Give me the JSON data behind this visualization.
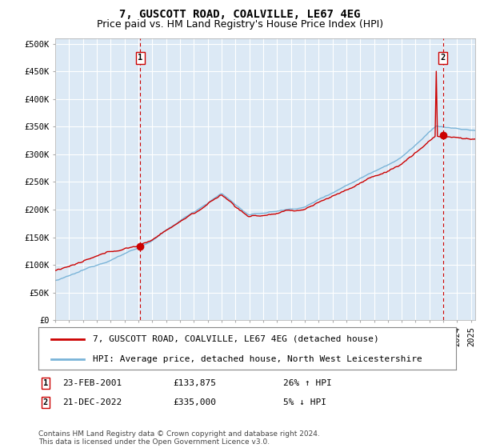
{
  "title": "7, GUSCOTT ROAD, COALVILLE, LE67 4EG",
  "subtitle": "Price paid vs. HM Land Registry's House Price Index (HPI)",
  "ylabel_ticks": [
    "£0",
    "£50K",
    "£100K",
    "£150K",
    "£200K",
    "£250K",
    "£300K",
    "£350K",
    "£400K",
    "£450K",
    "£500K"
  ],
  "ytick_values": [
    0,
    50000,
    100000,
    150000,
    200000,
    250000,
    300000,
    350000,
    400000,
    450000,
    500000
  ],
  "ylim": [
    0,
    510000
  ],
  "xlim_start": 1995.0,
  "xlim_end": 2025.3,
  "sale1_date": 2001.14,
  "sale1_price": 133875,
  "sale1_label": "1",
  "sale2_date": 2022.97,
  "sale2_price": 335000,
  "sale2_label": "2",
  "hpi_color": "#7ab4d8",
  "price_color": "#cc0000",
  "vline_color": "#cc0000",
  "vline_style": "--",
  "background_color": "#ffffff",
  "plot_bg_color": "#dce9f5",
  "grid_color": "#ffffff",
  "legend_label_price": "7, GUSCOTT ROAD, COALVILLE, LE67 4EG (detached house)",
  "legend_label_hpi": "HPI: Average price, detached house, North West Leicestershire",
  "annotation1_date": "23-FEB-2001",
  "annotation1_price": "£133,875",
  "annotation1_hpi": "26% ↑ HPI",
  "annotation2_date": "21-DEC-2022",
  "annotation2_price": "£335,000",
  "annotation2_hpi": "5% ↓ HPI",
  "footer": "Contains HM Land Registry data © Crown copyright and database right 2024.\nThis data is licensed under the Open Government Licence v3.0.",
  "title_fontsize": 10,
  "subtitle_fontsize": 9,
  "tick_fontsize": 7.5,
  "legend_fontsize": 8,
  "footer_fontsize": 6.5
}
